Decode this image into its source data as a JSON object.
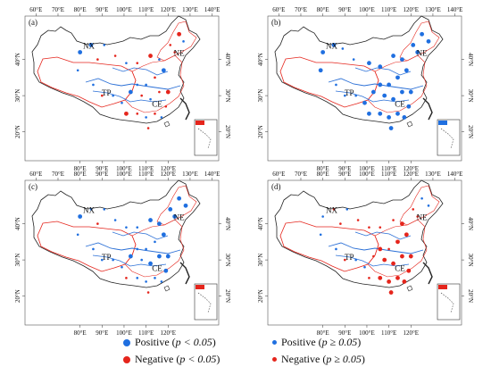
{
  "colors": {
    "positive": "#1f6fe0",
    "negative": "#e5251c",
    "boundary": "#222222",
    "region": "#e5251c",
    "river": "#2a6fd6",
    "inset_frame": "#333333"
  },
  "axis": {
    "x_ticks": [
      "60°E",
      "70°E",
      "80°E",
      "90°E",
      "100°E",
      "110°E",
      "120°E",
      "130°E",
      "140°E"
    ],
    "x_ticks_bottom": [
      "80°E",
      "90°E",
      "100°E",
      "110°E",
      "120°E"
    ],
    "y_ticks": [
      "40°N",
      "30°N",
      "20°N"
    ]
  },
  "regions": [
    "NX",
    "NE",
    "TP",
    "CE"
  ],
  "panels": [
    {
      "label": "(a)",
      "points": [
        {
          "lon": 80,
          "lat": 42,
          "class": "positive_sig"
        },
        {
          "lon": 85,
          "lat": 44,
          "class": "positive_sig"
        },
        {
          "lon": 91,
          "lat": 44,
          "class": "positive"
        },
        {
          "lon": 79,
          "lat": 37,
          "class": "positive"
        },
        {
          "lon": 88,
          "lat": 40,
          "class": "negative"
        },
        {
          "lon": 96,
          "lat": 41,
          "class": "negative"
        },
        {
          "lon": 101,
          "lat": 39,
          "class": "positive"
        },
        {
          "lon": 106,
          "lat": 39,
          "class": "negative"
        },
        {
          "lon": 112,
          "lat": 41,
          "class": "negative_sig"
        },
        {
          "lon": 116,
          "lat": 40,
          "class": "positive"
        },
        {
          "lon": 121,
          "lat": 44,
          "class": "negative"
        },
        {
          "lon": 125,
          "lat": 47,
          "class": "negative_sig"
        },
        {
          "lon": 127,
          "lat": 45,
          "class": "positive"
        },
        {
          "lon": 123,
          "lat": 42,
          "class": "negative"
        },
        {
          "lon": 118,
          "lat": 37,
          "class": "positive_sig"
        },
        {
          "lon": 114,
          "lat": 35,
          "class": "negative"
        },
        {
          "lon": 110,
          "lat": 33,
          "class": "positive"
        },
        {
          "lon": 106,
          "lat": 33,
          "class": "positive"
        },
        {
          "lon": 103,
          "lat": 31,
          "class": "positive_sig"
        },
        {
          "lon": 108,
          "lat": 30,
          "class": "negative"
        },
        {
          "lon": 112,
          "lat": 29,
          "class": "positive"
        },
        {
          "lon": 116,
          "lat": 31,
          "class": "negative"
        },
        {
          "lon": 120,
          "lat": 31,
          "class": "negative_sig"
        },
        {
          "lon": 119,
          "lat": 27,
          "class": "negative"
        },
        {
          "lon": 114,
          "lat": 25,
          "class": "negative"
        },
        {
          "lon": 110,
          "lat": 24,
          "class": "positive"
        },
        {
          "lon": 106,
          "lat": 25,
          "class": "negative"
        },
        {
          "lon": 101,
          "lat": 25,
          "class": "negative_sig"
        },
        {
          "lon": 99,
          "lat": 28,
          "class": "positive"
        },
        {
          "lon": 95,
          "lat": 30,
          "class": "positive"
        },
        {
          "lon": 90,
          "lat": 30,
          "class": "negative"
        },
        {
          "lon": 86,
          "lat": 33,
          "class": "positive"
        },
        {
          "lon": 111,
          "lat": 21,
          "class": "negative"
        },
        {
          "lon": 117,
          "lat": 24,
          "class": "positive"
        }
      ]
    },
    {
      "label": "(b)",
      "points": [
        {
          "lon": 80,
          "lat": 42,
          "class": "positive_sig"
        },
        {
          "lon": 85,
          "lat": 44,
          "class": "positive_sig"
        },
        {
          "lon": 89,
          "lat": 43,
          "class": "positive"
        },
        {
          "lon": 79,
          "lat": 37,
          "class": "positive_sig"
        },
        {
          "lon": 94,
          "lat": 40,
          "class": "positive"
        },
        {
          "lon": 101,
          "lat": 39,
          "class": "positive_sig"
        },
        {
          "lon": 106,
          "lat": 38,
          "class": "positive_sig"
        },
        {
          "lon": 112,
          "lat": 41,
          "class": "positive_sig"
        },
        {
          "lon": 116,
          "lat": 40,
          "class": "positive_sig"
        },
        {
          "lon": 121,
          "lat": 44,
          "class": "positive_sig"
        },
        {
          "lon": 125,
          "lat": 47,
          "class": "positive_sig"
        },
        {
          "lon": 128,
          "lat": 45,
          "class": "positive_sig"
        },
        {
          "lon": 123,
          "lat": 42,
          "class": "positive_sig"
        },
        {
          "lon": 118,
          "lat": 37,
          "class": "positive_sig"
        },
        {
          "lon": 114,
          "lat": 35,
          "class": "positive_sig"
        },
        {
          "lon": 110,
          "lat": 33,
          "class": "positive_sig"
        },
        {
          "lon": 106,
          "lat": 33,
          "class": "positive_sig"
        },
        {
          "lon": 103,
          "lat": 31,
          "class": "positive_sig"
        },
        {
          "lon": 108,
          "lat": 30,
          "class": "positive_sig"
        },
        {
          "lon": 112,
          "lat": 29,
          "class": "positive_sig"
        },
        {
          "lon": 116,
          "lat": 31,
          "class": "positive_sig"
        },
        {
          "lon": 120,
          "lat": 31,
          "class": "positive_sig"
        },
        {
          "lon": 119,
          "lat": 27,
          "class": "positive_sig"
        },
        {
          "lon": 114,
          "lat": 25,
          "class": "positive_sig"
        },
        {
          "lon": 110,
          "lat": 24,
          "class": "positive_sig"
        },
        {
          "lon": 106,
          "lat": 25,
          "class": "positive_sig"
        },
        {
          "lon": 101,
          "lat": 25,
          "class": "positive_sig"
        },
        {
          "lon": 99,
          "lat": 28,
          "class": "positive_sig"
        },
        {
          "lon": 95,
          "lat": 30,
          "class": "positive"
        },
        {
          "lon": 90,
          "lat": 30,
          "class": "positive"
        },
        {
          "lon": 86,
          "lat": 33,
          "class": "positive"
        },
        {
          "lon": 111,
          "lat": 21,
          "class": "positive_sig"
        },
        {
          "lon": 117,
          "lat": 24,
          "class": "positive_sig"
        }
      ]
    },
    {
      "label": "(c)",
      "points": [
        {
          "lon": 80,
          "lat": 42,
          "class": "positive_sig"
        },
        {
          "lon": 85,
          "lat": 44,
          "class": "positive"
        },
        {
          "lon": 91,
          "lat": 44,
          "class": "positive"
        },
        {
          "lon": 79,
          "lat": 37,
          "class": "positive"
        },
        {
          "lon": 88,
          "lat": 40,
          "class": "negative"
        },
        {
          "lon": 96,
          "lat": 41,
          "class": "positive"
        },
        {
          "lon": 101,
          "lat": 39,
          "class": "positive"
        },
        {
          "lon": 106,
          "lat": 39,
          "class": "positive"
        },
        {
          "lon": 112,
          "lat": 41,
          "class": "positive_sig"
        },
        {
          "lon": 116,
          "lat": 40,
          "class": "positive_sig"
        },
        {
          "lon": 121,
          "lat": 44,
          "class": "positive_sig"
        },
        {
          "lon": 125,
          "lat": 47,
          "class": "positive_sig"
        },
        {
          "lon": 128,
          "lat": 45,
          "class": "positive_sig"
        },
        {
          "lon": 123,
          "lat": 42,
          "class": "positive_sig"
        },
        {
          "lon": 118,
          "lat": 37,
          "class": "positive_sig"
        },
        {
          "lon": 114,
          "lat": 35,
          "class": "positive"
        },
        {
          "lon": 110,
          "lat": 33,
          "class": "positive"
        },
        {
          "lon": 106,
          "lat": 33,
          "class": "positive"
        },
        {
          "lon": 103,
          "lat": 31,
          "class": "positive_sig"
        },
        {
          "lon": 108,
          "lat": 30,
          "class": "positive"
        },
        {
          "lon": 112,
          "lat": 29,
          "class": "positive_sig"
        },
        {
          "lon": 116,
          "lat": 31,
          "class": "positive_sig"
        },
        {
          "lon": 120,
          "lat": 31,
          "class": "positive_sig"
        },
        {
          "lon": 119,
          "lat": 27,
          "class": "positive_sig"
        },
        {
          "lon": 114,
          "lat": 25,
          "class": "positive"
        },
        {
          "lon": 110,
          "lat": 24,
          "class": "positive"
        },
        {
          "lon": 106,
          "lat": 25,
          "class": "positive"
        },
        {
          "lon": 101,
          "lat": 25,
          "class": "negative"
        },
        {
          "lon": 99,
          "lat": 28,
          "class": "positive"
        },
        {
          "lon": 95,
          "lat": 30,
          "class": "positive"
        },
        {
          "lon": 90,
          "lat": 30,
          "class": "positive"
        },
        {
          "lon": 86,
          "lat": 33,
          "class": "positive"
        },
        {
          "lon": 111,
          "lat": 21,
          "class": "negative"
        },
        {
          "lon": 117,
          "lat": 24,
          "class": "positive"
        }
      ]
    },
    {
      "label": "(d)",
      "points": [
        {
          "lon": 80,
          "lat": 42,
          "class": "positive"
        },
        {
          "lon": 85,
          "lat": 44,
          "class": "negative"
        },
        {
          "lon": 91,
          "lat": 44,
          "class": "positive"
        },
        {
          "lon": 79,
          "lat": 37,
          "class": "positive"
        },
        {
          "lon": 88,
          "lat": 40,
          "class": "negative"
        },
        {
          "lon": 96,
          "lat": 41,
          "class": "negative"
        },
        {
          "lon": 101,
          "lat": 39,
          "class": "negative"
        },
        {
          "lon": 106,
          "lat": 39,
          "class": "negative"
        },
        {
          "lon": 112,
          "lat": 41,
          "class": "negative"
        },
        {
          "lon": 116,
          "lat": 40,
          "class": "negative_sig"
        },
        {
          "lon": 121,
          "lat": 44,
          "class": "negative"
        },
        {
          "lon": 125,
          "lat": 47,
          "class": "positive"
        },
        {
          "lon": 128,
          "lat": 45,
          "class": "positive"
        },
        {
          "lon": 123,
          "lat": 42,
          "class": "negative"
        },
        {
          "lon": 118,
          "lat": 37,
          "class": "negative_sig"
        },
        {
          "lon": 114,
          "lat": 35,
          "class": "negative_sig"
        },
        {
          "lon": 110,
          "lat": 33,
          "class": "negative"
        },
        {
          "lon": 106,
          "lat": 33,
          "class": "negative_sig"
        },
        {
          "lon": 103,
          "lat": 31,
          "class": "negative"
        },
        {
          "lon": 108,
          "lat": 30,
          "class": "negative_sig"
        },
        {
          "lon": 112,
          "lat": 29,
          "class": "negative_sig"
        },
        {
          "lon": 116,
          "lat": 31,
          "class": "negative_sig"
        },
        {
          "lon": 120,
          "lat": 31,
          "class": "negative_sig"
        },
        {
          "lon": 119,
          "lat": 27,
          "class": "negative_sig"
        },
        {
          "lon": 114,
          "lat": 25,
          "class": "negative_sig"
        },
        {
          "lon": 110,
          "lat": 24,
          "class": "negative_sig"
        },
        {
          "lon": 106,
          "lat": 25,
          "class": "negative_sig"
        },
        {
          "lon": 101,
          "lat": 25,
          "class": "negative"
        },
        {
          "lon": 99,
          "lat": 28,
          "class": "positive"
        },
        {
          "lon": 95,
          "lat": 30,
          "class": "positive"
        },
        {
          "lon": 90,
          "lat": 30,
          "class": "negative"
        },
        {
          "lon": 86,
          "lat": 33,
          "class": "positive"
        },
        {
          "lon": 111,
          "lat": 21,
          "class": "negative_sig"
        },
        {
          "lon": 117,
          "lat": 24,
          "class": "negative_sig"
        }
      ]
    }
  ],
  "legend": [
    {
      "key": "positive_sig",
      "label": "Positive",
      "condition": "p < 0.05"
    },
    {
      "key": "positive",
      "label": "Positive",
      "condition": "p ≥ 0.05"
    },
    {
      "key": "negative_sig",
      "label": "Negative",
      "condition": "p < 0.05"
    },
    {
      "key": "negative",
      "label": "Negative",
      "condition": "p ≥ 0.05"
    }
  ]
}
